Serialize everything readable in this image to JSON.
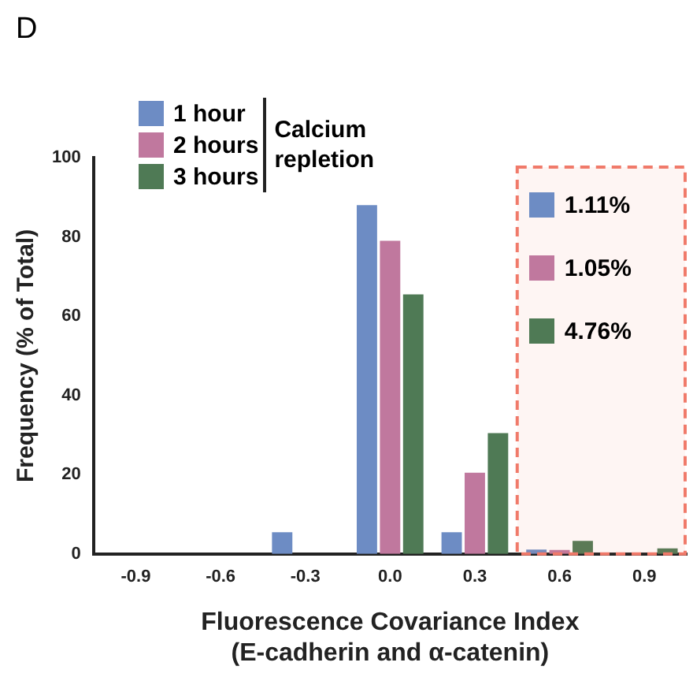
{
  "chart_data": {
    "type": "bar",
    "title": "D",
    "xlabel": "Fluorescence Covariance Index\n(E-cadherin and α-catenin)",
    "ylabel": "Frequency (% of Total)",
    "legend_title": "Calcium repletion",
    "legend": "top left",
    "x": [
      -0.9,
      -0.6,
      -0.3,
      0.0,
      0.3,
      0.6,
      0.9
    ],
    "xlim": [
      -1.05,
      1.05
    ],
    "xticks": [
      {
        "value": -0.9,
        "label": "-0.9"
      },
      {
        "value": -0.6,
        "label": "-0.6"
      },
      {
        "value": -0.3,
        "label": "-0.3"
      },
      {
        "value": 0,
        "label": "0.0"
      },
      {
        "value": 0.3,
        "label": "0.3"
      },
      {
        "value": 0.6,
        "label": "0.6"
      },
      {
        "value": 0.9,
        "label": "0.9"
      }
    ],
    "ylim": [
      0,
      100
    ],
    "yticks": [
      0,
      20,
      40,
      60,
      80,
      100
    ],
    "grid": false,
    "series": [
      {
        "name": "1 hour",
        "color": "#6d8cc4",
        "values": [
          0,
          0,
          5.5,
          88,
          5.5,
          1.1,
          0
        ]
      },
      {
        "name": "2 hours",
        "color": "#c0789e",
        "values": [
          0,
          0,
          0,
          79,
          20.5,
          1,
          0
        ]
      },
      {
        "name": "3 hours",
        "color": "#4f7a55",
        "values": [
          0,
          0,
          0,
          65.5,
          30.5,
          3.3,
          1.4
        ]
      }
    ],
    "bands": [
      {
        "axis": "x",
        "from": 0.45,
        "to": 1.05,
        "color": "#f07a6a"
      }
    ],
    "annotations": [
      "1.11%",
      "1.05%",
      "4.76%"
    ]
  }
}
